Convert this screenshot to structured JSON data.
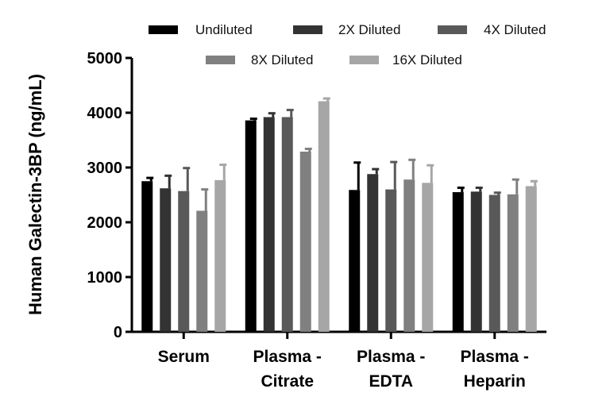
{
  "chart_data": {
    "type": "bar",
    "categories": [
      [
        "Serum"
      ],
      [
        "Plasma -",
        "Citrate"
      ],
      [
        "Plasma -",
        "EDTA"
      ],
      [
        "Plasma -",
        "Heparin"
      ]
    ],
    "ylabel": "Human Galectin-3BP (ng/mL)",
    "ylim": [
      0,
      5000
    ],
    "yticks": [
      0,
      1000,
      2000,
      3000,
      4000,
      5000
    ],
    "legend_position": "top",
    "grid": false,
    "series": [
      {
        "name": "Undiluted",
        "color": "#000000",
        "values": [
          2750,
          3860,
          2590,
          2550
        ],
        "errors": [
          60,
          30,
          500,
          80
        ]
      },
      {
        "name": "2X Diluted",
        "color": "#333333",
        "values": [
          2620,
          3920,
          2880,
          2560
        ],
        "errors": [
          230,
          70,
          90,
          70
        ]
      },
      {
        "name": "4X Diluted",
        "color": "#595959",
        "values": [
          2570,
          3920,
          2600,
          2500
        ],
        "errors": [
          420,
          130,
          500,
          40
        ]
      },
      {
        "name": "8X Diluted",
        "color": "#808080",
        "values": [
          2210,
          3290,
          2780,
          2510
        ],
        "errors": [
          390,
          50,
          360,
          270
        ]
      },
      {
        "name": "16X Diluted",
        "color": "#a6a6a6",
        "values": [
          2770,
          4210,
          2720,
          2660
        ],
        "errors": [
          280,
          50,
          320,
          90
        ]
      }
    ]
  }
}
